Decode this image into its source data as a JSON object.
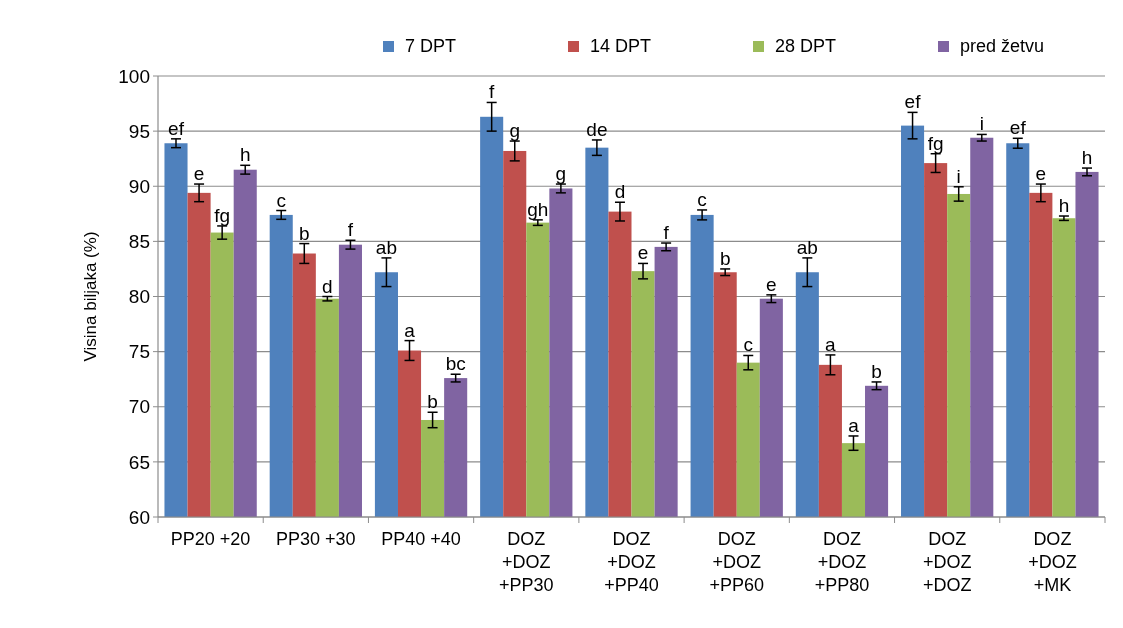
{
  "chart_data": {
    "type": "bar",
    "ylabel": "Visina biljaka  (%)",
    "categories": [
      "PP20 +20",
      "PP30 +30",
      "PP40 +40",
      "DOZ\n+DOZ\n+PP30",
      "DOZ\n+DOZ\n+PP40",
      "DOZ\n+DOZ\n+PP60",
      "DOZ\n+DOZ\n+PP80",
      "DOZ\n+DOZ\n+DOZ",
      "DOZ\n+DOZ\n+MK"
    ],
    "series": [
      {
        "name": "7 DPT",
        "color": "#4f81bd",
        "values": [
          93.9,
          87.4,
          82.2,
          96.3,
          93.5,
          87.4,
          82.2,
          95.5,
          93.9
        ],
        "errors": [
          0.4,
          0.4,
          1.3,
          1.3,
          0.7,
          0.45,
          1.3,
          1.2,
          0.45
        ],
        "value_labels": [
          "ef",
          "c",
          "ab",
          "f",
          "de",
          "c",
          "ab",
          "ef",
          "ef"
        ]
      },
      {
        "name": "14 DPT",
        "color": "#c0504d",
        "values": [
          89.4,
          83.9,
          75.1,
          93.2,
          87.7,
          82.2,
          73.8,
          92.1,
          89.4
        ],
        "errors": [
          0.8,
          0.9,
          0.9,
          0.9,
          0.85,
          0.3,
          0.9,
          0.85,
          0.8
        ],
        "value_labels": [
          "e",
          "b",
          "a",
          "g",
          "d",
          "b",
          "a",
          "fg",
          "e"
        ]
      },
      {
        "name": "28 DPT",
        "color": "#9bbb59",
        "values": [
          85.8,
          79.8,
          68.8,
          86.7,
          82.3,
          74.0,
          66.7,
          89.3,
          87.1
        ],
        "errors": [
          0.6,
          0.2,
          0.7,
          0.25,
          0.7,
          0.65,
          0.65,
          0.65,
          0.2
        ],
        "value_labels": [
          "fg",
          "d",
          "b",
          "gh",
          "e",
          "c",
          "a",
          "i",
          "h"
        ]
      },
      {
        "name": "pred žetvu",
        "color": "#8064a2",
        "values": [
          91.5,
          84.7,
          72.6,
          89.8,
          84.5,
          79.8,
          71.9,
          94.4,
          91.3
        ],
        "errors": [
          0.4,
          0.4,
          0.35,
          0.4,
          0.35,
          0.35,
          0.35,
          0.3,
          0.35
        ],
        "value_labels": [
          "h",
          "f",
          "bc",
          "g",
          "f",
          "e",
          "b",
          "i",
          "h"
        ]
      }
    ],
    "ylim": [
      60,
      100
    ],
    "yticks": [
      60,
      65,
      70,
      75,
      80,
      85,
      90,
      95,
      100
    ],
    "grid": "y",
    "legend": "top"
  }
}
